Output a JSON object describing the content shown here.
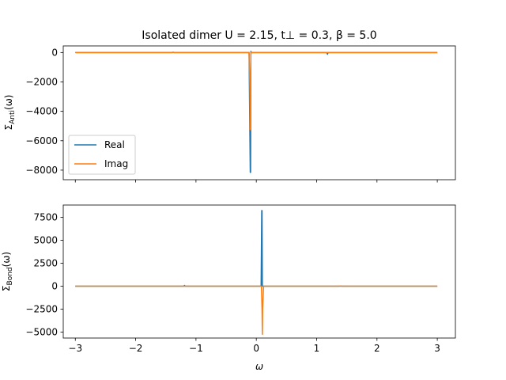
{
  "chart_data": [
    {
      "type": "line",
      "title": "Isolated dimer U = 2.15, t⊥ = 0.3, β = 5.0",
      "xlabel": "",
      "ylabel": "Σ_Anti(ω)",
      "xlim": [
        -3.2,
        3.3
      ],
      "ylim": [
        -8650,
        450
      ],
      "xticks": [
        -3,
        -2,
        -1,
        0,
        1,
        2,
        3
      ],
      "xtick_labels": [
        "",
        "",
        "",
        "",
        "",
        "",
        ""
      ],
      "yticks": [
        0,
        -2000,
        -4000,
        -6000,
        -8000
      ],
      "ytick_labels": [
        "0",
        "−2000",
        "−4000",
        "−6000",
        "−8000"
      ],
      "legend": {
        "placement": "lower-left",
        "entries": [
          "Real",
          "Imag"
        ]
      },
      "grid": false,
      "series": [
        {
          "name": "Real",
          "color": "#1f77b4",
          "x": [
            -3.0,
            -1.4,
            -1.38,
            -1.36,
            -0.2,
            -0.12,
            -0.1,
            -0.095,
            -0.09,
            -0.085,
            -0.07,
            0.5,
            1.17,
            1.18,
            1.19,
            1.2,
            3.0
          ],
          "y": [
            0,
            0,
            20,
            0,
            0,
            0,
            -8150,
            -8150,
            80,
            0,
            0,
            0,
            0,
            -120,
            0,
            0,
            0
          ]
        },
        {
          "name": "Imag",
          "color": "#ff7f0e",
          "x": [
            -3.0,
            -1.4,
            -0.2,
            -0.12,
            -0.105,
            -0.1,
            -0.095,
            -0.09,
            0.5,
            1.2,
            3.0
          ],
          "y": [
            0,
            0,
            0,
            0,
            -2500,
            -5250,
            -2500,
            0,
            0,
            0,
            0
          ]
        }
      ]
    },
    {
      "type": "line",
      "title": "",
      "xlabel": "ω",
      "ylabel": "Σ_Bond(ω)",
      "xlim": [
        -3.2,
        3.3
      ],
      "ylim": [
        -5650,
        8850
      ],
      "xticks": [
        -3,
        -2,
        -1,
        0,
        1,
        2,
        3
      ],
      "xtick_labels": [
        "−3",
        "−2",
        "−1",
        "0",
        "1",
        "2",
        "3"
      ],
      "yticks": [
        7500,
        5000,
        2500,
        0,
        -2500,
        -5000
      ],
      "ytick_labels": [
        "7500",
        "5000",
        "2500",
        "0",
        "−2500",
        "−5000"
      ],
      "grid": false,
      "series": [
        {
          "name": "Real",
          "color": "#1f77b4",
          "x": [
            -3.0,
            -1.2,
            -1.19,
            -1.18,
            0.05,
            0.08,
            0.09,
            0.095,
            0.1,
            0.12,
            1.4,
            3.0
          ],
          "y": [
            0,
            0,
            90,
            0,
            0,
            0,
            8250,
            8250,
            0,
            0,
            0,
            0
          ]
        },
        {
          "name": "Imag",
          "color": "#ff7f0e",
          "x": [
            -3.0,
            -1.2,
            0.05,
            0.085,
            0.095,
            0.1,
            0.105,
            0.12,
            1.38,
            1.4,
            1.42,
            3.0
          ],
          "y": [
            0,
            0,
            0,
            0,
            -2500,
            -5250,
            -2500,
            0,
            0,
            30,
            0,
            0
          ]
        }
      ]
    }
  ]
}
